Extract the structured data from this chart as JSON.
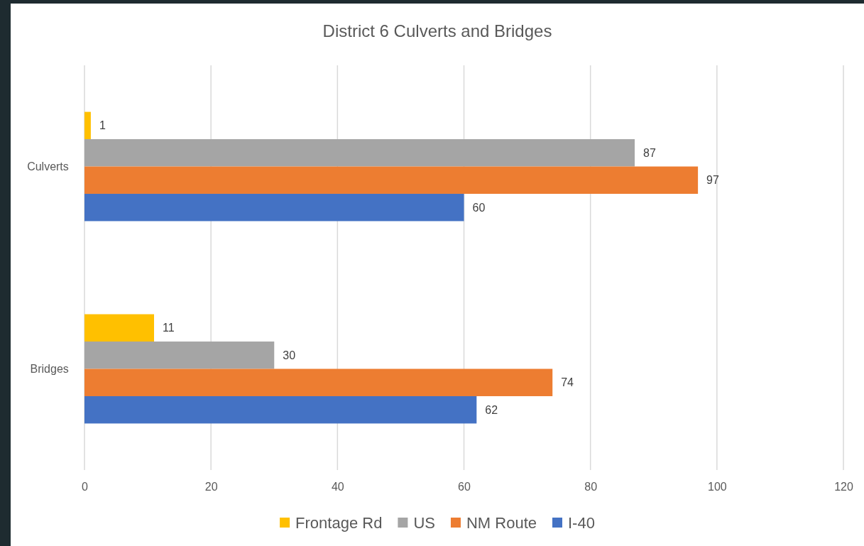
{
  "chart_data": {
    "type": "bar",
    "orientation": "horizontal",
    "title": "District 6 Culverts and Bridges",
    "categories": [
      "Culverts",
      "Bridges"
    ],
    "series": [
      {
        "name": "Frontage Rd",
        "color": "#ffc000",
        "values": [
          1,
          11
        ]
      },
      {
        "name": "US",
        "color": "#a5a5a5",
        "values": [
          87,
          30
        ]
      },
      {
        "name": "NM Route",
        "color": "#ed7d31",
        "values": [
          97,
          74
        ]
      },
      {
        "name": "I-40",
        "color": "#4472c4",
        "values": [
          60,
          62
        ]
      }
    ],
    "xlim": [
      0,
      120
    ],
    "xticks": [
      0,
      20,
      40,
      60,
      80,
      100,
      120
    ],
    "grid": "x",
    "legend": "bottom",
    "data_labels": true
  }
}
